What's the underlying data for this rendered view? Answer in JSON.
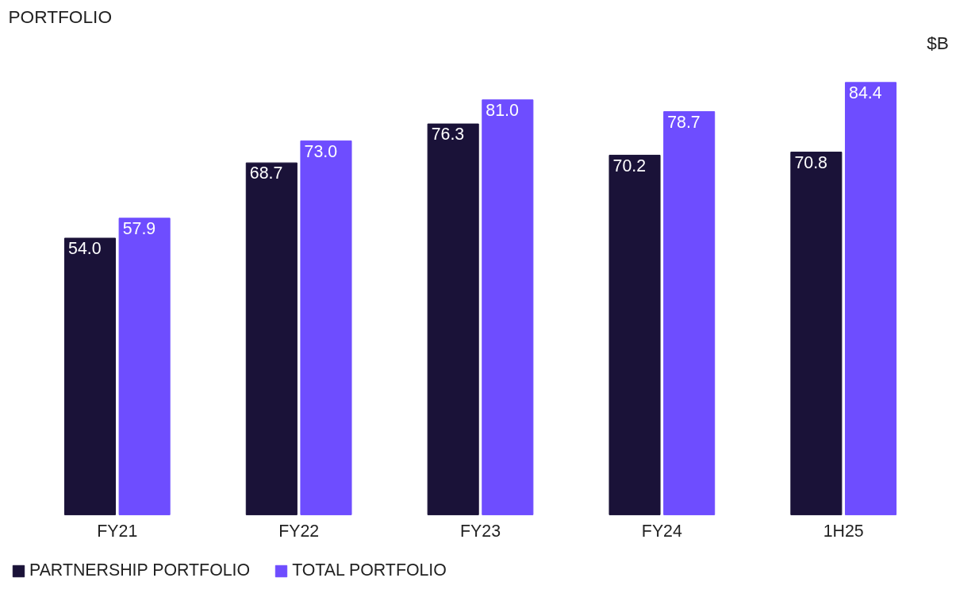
{
  "chart_data": {
    "type": "bar",
    "title": "PORTFOLIO",
    "annotations": [
      "$B"
    ],
    "categories": [
      "FY21",
      "FY22",
      "FY23",
      "FY24",
      "1H25"
    ],
    "series": [
      {
        "name": "PARTNERSHIP PORTFOLIO",
        "color": "#1a1238",
        "values": [
          54.0,
          68.7,
          76.3,
          70.2,
          70.8
        ],
        "value_labels": [
          "54.0",
          "68.7",
          "76.3",
          "70.2",
          "70.8"
        ]
      },
      {
        "name": "TOTAL PORTFOLIO",
        "color": "#6e4dff",
        "values": [
          57.9,
          73.0,
          81.0,
          78.7,
          84.4
        ],
        "value_labels": [
          "57.9",
          "73.0",
          "81.0",
          "78.7",
          "84.4"
        ]
      }
    ],
    "data_labels": true,
    "grid": false,
    "legend": "bottom left"
  }
}
